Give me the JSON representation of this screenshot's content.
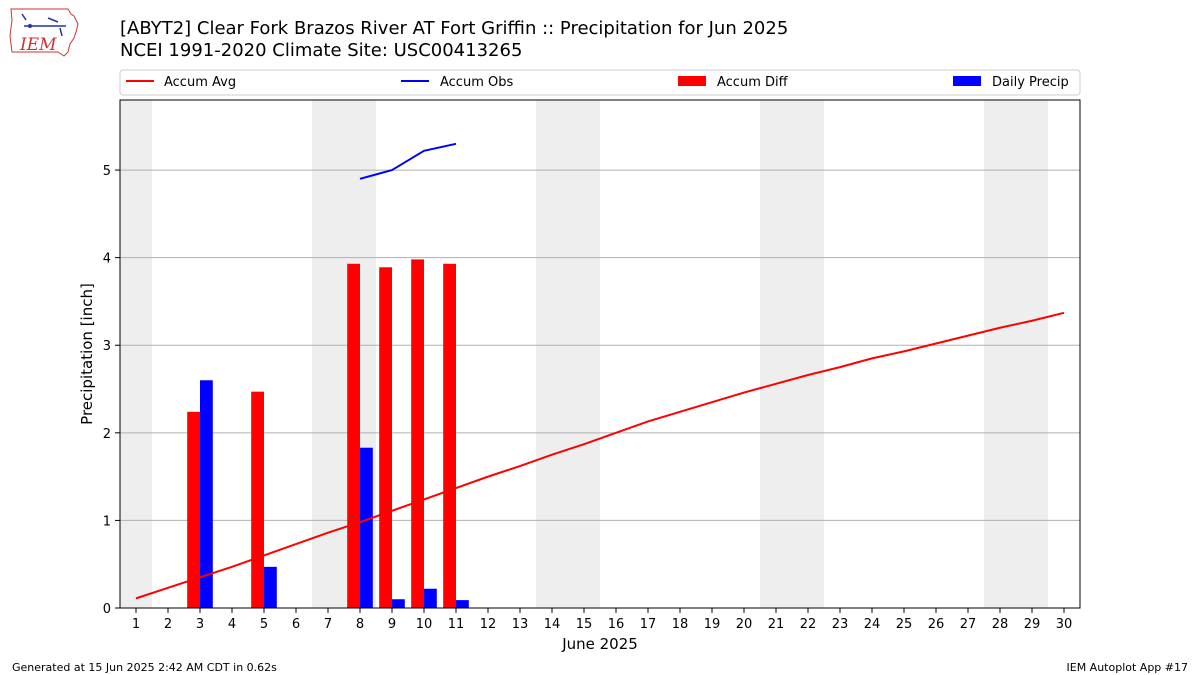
{
  "header": {
    "title_line1": "[ABYT2] Clear Fork Brazos River  AT Fort Griffin :: Precipitation for Jun 2025",
    "title_line2": "NCEI 1991-2020 Climate Site: USC00413265",
    "logo_text": "IEM"
  },
  "footer": {
    "generated": "Generated at 15 Jun 2025 2:42 AM CDT in 0.62s",
    "app": "IEM Autoplot App #17"
  },
  "colors": {
    "accum_avg": "#ff0000",
    "accum_obs": "#0000ff",
    "accum_diff": "#ff0000",
    "daily_precip": "#0000ff",
    "weekend_shade": "#eeeeee",
    "grid": "#b0b0b0"
  },
  "chart_data": {
    "type": "bar",
    "xlabel": "June 2025",
    "ylabel": "Precipitation [inch]",
    "xlim": [
      0.5,
      30.5
    ],
    "ylim": [
      0,
      5.8
    ],
    "yticks": [
      0,
      1,
      2,
      3,
      4,
      5
    ],
    "x": [
      1,
      2,
      3,
      4,
      5,
      6,
      7,
      8,
      9,
      10,
      11,
      12,
      13,
      14,
      15,
      16,
      17,
      18,
      19,
      20,
      21,
      22,
      23,
      24,
      25,
      26,
      27,
      28,
      29,
      30
    ],
    "weekend_days": [
      1,
      7,
      8,
      14,
      15,
      21,
      22,
      28,
      29
    ],
    "grid": "y",
    "legend_position": "top",
    "legend": [
      "Accum Avg",
      "Accum Obs",
      "Accum Diff",
      "Daily Precip"
    ],
    "series": [
      {
        "name": "Accum Avg",
        "kind": "line",
        "x": [
          1,
          2,
          3,
          4,
          5,
          6,
          7,
          8,
          9,
          10,
          11,
          12,
          13,
          14,
          15,
          16,
          17,
          18,
          19,
          20,
          21,
          22,
          23,
          24,
          25,
          26,
          27,
          28,
          29,
          30
        ],
        "values": [
          0.11,
          0.23,
          0.35,
          0.47,
          0.6,
          0.73,
          0.86,
          0.98,
          1.11,
          1.24,
          1.37,
          1.5,
          1.62,
          1.75,
          1.87,
          2.0,
          2.13,
          2.24,
          2.35,
          2.46,
          2.56,
          2.66,
          2.75,
          2.85,
          2.93,
          3.02,
          3.11,
          3.2,
          3.28,
          3.37
        ]
      },
      {
        "name": "Accum Obs",
        "kind": "line",
        "x": [
          8,
          9,
          10,
          11
        ],
        "values": [
          4.9,
          5.0,
          5.22,
          5.3
        ]
      },
      {
        "name": "Accum Diff",
        "kind": "bar",
        "x": [
          3,
          5,
          8,
          9,
          10,
          11
        ],
        "values": [
          2.24,
          2.47,
          3.93,
          3.89,
          3.98,
          3.93
        ]
      },
      {
        "name": "Daily Precip",
        "kind": "bar",
        "x": [
          3,
          5,
          8,
          9,
          10,
          11
        ],
        "values": [
          2.6,
          0.47,
          1.83,
          0.1,
          0.22,
          0.09
        ]
      }
    ]
  }
}
